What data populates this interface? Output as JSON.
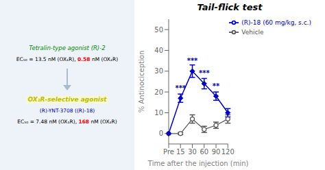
{
  "chart_data": {
    "type": "line",
    "title": "Tail-flick test",
    "xlabel": "Time after the injection (min)",
    "ylabel": "% Antinociception",
    "categories": [
      "Pre",
      "15",
      "30",
      "60",
      "90",
      "120"
    ],
    "series": [
      {
        "name": "Vehicle",
        "color": "#555555",
        "marker": "circle",
        "values": [
          0,
          0,
          7,
          2,
          4,
          7
        ],
        "errors": [
          0,
          0.5,
          2,
          1.5,
          1.5,
          2
        ]
      },
      {
        "name": "(R)-18 (60 mg/kg, s.c.)",
        "color": "#0000CC",
        "marker": "diamond",
        "values": [
          0,
          17,
          30,
          24,
          18,
          10
        ],
        "errors": [
          0,
          2,
          3,
          2.5,
          2,
          2
        ]
      }
    ],
    "ylim": [
      -5,
      55
    ],
    "yticks": [
      0,
      10,
      20,
      30,
      40,
      50
    ],
    "legend": "upper right",
    "annotations": [
      {
        "x": "15",
        "y": 22,
        "text": "***",
        "color": "#0000CC"
      },
      {
        "x": "30",
        "y": 35,
        "text": "***",
        "color": "#0000CC"
      },
      {
        "x": "60",
        "y": 29,
        "text": "***",
        "color": "#0000CC"
      },
      {
        "x": "90",
        "y": 23,
        "text": "**",
        "color": "#0000CC"
      },
      {
        "parts": [
          {
            "text": "Tetralin-type agonist (R)-2",
            "color": "#008800"
          }
        ]
      },
      {
        "parts": [
          {
            "text": "EC₅₀ = 13.5 nM (OX₁R), "
          },
          {
            "text": "0.58",
            "color": "#ff0000"
          },
          {
            "text": " nM (OX₂R)"
          }
        ]
      },
      {
        "parts": [
          {
            "text": "OX₁R-selective agonist",
            "color": "#bbbb00"
          }
        ]
      },
      {
        "parts": [
          {
            "text": "(R)-YNT-3708 ((R)-18)",
            "color": "#0000AA"
          }
        ]
      },
      {
        "parts": [
          {
            "text": "EC₅₀ = "
          },
          {
            "text": "7.48"
          },
          {
            "text": " nM (OX₁R), "
          },
          {
            "text": "168",
            "color": "#ff0000"
          },
          {
            "text": " nM (OX₂R)"
          }
        ]
      }
    ]
  }
}
